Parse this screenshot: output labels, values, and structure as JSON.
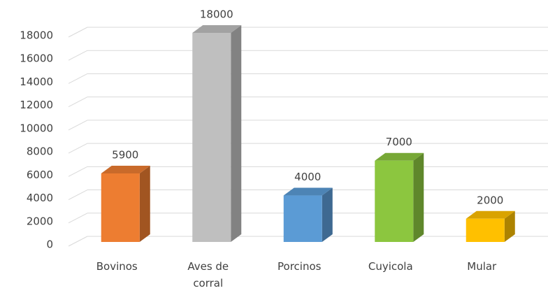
{
  "chart_data": {
    "type": "bar3d",
    "categories": [
      "Bovinos",
      "Aves de corral",
      "Porcinos",
      "Cuyicola",
      "Mular"
    ],
    "values": [
      5900,
      18000,
      4000,
      7000,
      2000
    ],
    "colors": [
      "#ed7d31",
      "#bfbfbf",
      "#5b9bd5",
      "#8cc63f",
      "#ffc000"
    ],
    "ylim": [
      0,
      18000
    ],
    "yticks": [
      0,
      2000,
      4000,
      6000,
      8000,
      10000,
      12000,
      14000,
      16000,
      18000
    ],
    "grid": true
  }
}
